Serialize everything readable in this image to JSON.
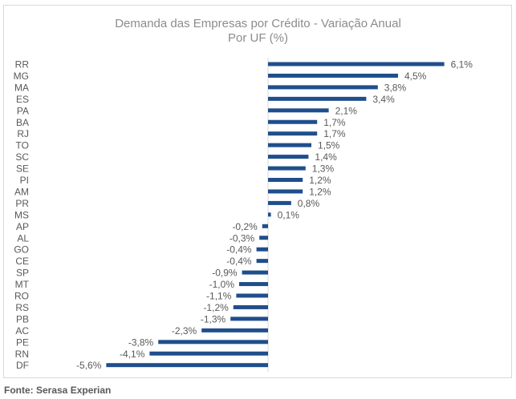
{
  "chart_data": {
    "type": "bar",
    "orientation": "horizontal",
    "title": "Demanda das Empresas por Crédito - Variação Anual",
    "subtitle": "Por UF (%)",
    "categories": [
      "RR",
      "MG",
      "MA",
      "ES",
      "PA",
      "BA",
      "RJ",
      "TO",
      "SC",
      "SE",
      "PI",
      "AM",
      "PR",
      "MS",
      "AP",
      "AL",
      "GO",
      "CE",
      "SP",
      "MT",
      "RO",
      "RS",
      "PB",
      "AC",
      "PE",
      "RN",
      "DF"
    ],
    "values": [
      6.1,
      4.5,
      3.8,
      3.4,
      2.1,
      1.7,
      1.7,
      1.5,
      1.4,
      1.3,
      1.2,
      1.2,
      0.8,
      0.1,
      -0.2,
      -0.3,
      -0.4,
      -0.4,
      -0.9,
      -1.0,
      -1.1,
      -1.2,
      -1.3,
      -2.3,
      -3.8,
      -4.1,
      -5.6
    ],
    "value_labels": [
      "6,1%",
      "4,5%",
      "3,8%",
      "3,4%",
      "2,1%",
      "1,7%",
      "1,7%",
      "1,5%",
      "1,4%",
      "1,3%",
      "1,2%",
      "1,2%",
      "0,8%",
      "0,1%",
      "-0,2%",
      "-0,3%",
      "-0,4%",
      "-0,4%",
      "-0,9%",
      "-1,0%",
      "-1,1%",
      "-1,2%",
      "-1,3%",
      "-2,3%",
      "-3,8%",
      "-4,1%",
      "-5,6%"
    ],
    "xlim": [
      -6.4,
      7.2
    ],
    "grid": false,
    "legend": "none",
    "colors": {
      "bar": "#1f4e8c",
      "label": "#595959",
      "axis": "#d9d9d9"
    }
  },
  "footer": {
    "source": "Fonte: Serasa Experian"
  }
}
